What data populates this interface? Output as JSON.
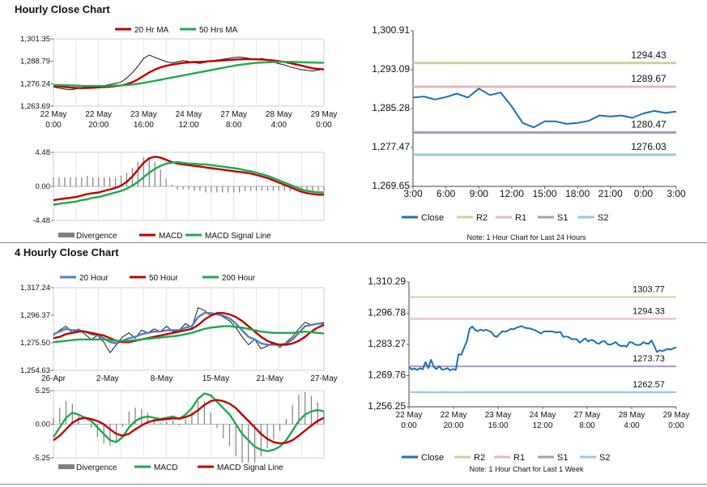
{
  "sections": [
    {
      "title": "Hourly Close Chart",
      "note": "Note: 1 Hour Chart for Last 24 Hours"
    },
    {
      "title": "4 Hourly Close Chart",
      "note": "Note: 1 Hour Chart for Last 1 Week"
    }
  ],
  "colors": {
    "price": "#1a1a1a",
    "ma_short": "#c00000",
    "ma_long": "#21a84f",
    "ma_blue": "#4f81bd",
    "macd_red": "#c00000",
    "macd_green": "#21a84f",
    "divergence": "#808080",
    "close": "#1f6fb5",
    "r2": "#c3d69b",
    "r1": "#e6b9b8",
    "s1": "#a79bc1",
    "s2": "#92cddc"
  },
  "chart_data": [
    {
      "id": "hourly-price",
      "type": "line",
      "legend": [
        "20 Hr MA",
        "50 Hrs MA"
      ],
      "legend_position": "top",
      "x_ticks": [
        "22 May\n0:00",
        "22 May\n20:00",
        "23 May\n16:00",
        "24 May\n12:00",
        "27 May\n8:00",
        "28 May\n4:00",
        "29 May\n0:00"
      ],
      "y_ticks": [
        "1,301.35",
        "1,288.79",
        "1,276.24",
        "1,263.69"
      ],
      "ylim": [
        1263.69,
        1301.35
      ],
      "series": [
        {
          "name": "price",
          "values": [
            1274.5,
            1273.8,
            1273.2,
            1272.9,
            1273.4,
            1274.1,
            1274.6,
            1274.3,
            1275.0,
            1275.2,
            1275.8,
            1276.4,
            1277.2,
            1279.5,
            1282.4,
            1286.1,
            1290.4,
            1292.3,
            1291.0,
            1289.8,
            1288.6,
            1287.9,
            1288.5,
            1289.2,
            1288.7,
            1288.1,
            1287.6,
            1288.3,
            1289.0,
            1289.5,
            1289.9,
            1290.4,
            1290.9,
            1291.2,
            1290.8,
            1290.3,
            1289.9,
            1290.4,
            1289.6,
            1288.4,
            1287.5,
            1286.8,
            1285.6,
            1284.9,
            1284.1,
            1283.7,
            1283.4,
            1283.9,
            1284.4
          ]
        },
        {
          "name": "20 Hr MA",
          "values": [
            1275.0,
            1274.7,
            1274.4,
            1274.1,
            1273.9,
            1273.8,
            1273.9,
            1274.0,
            1274.2,
            1274.4,
            1274.6,
            1274.9,
            1275.3,
            1276.0,
            1277.1,
            1278.7,
            1280.6,
            1282.6,
            1284.2,
            1285.4,
            1286.3,
            1286.9,
            1287.4,
            1287.9,
            1288.2,
            1288.4,
            1288.5,
            1288.7,
            1288.9,
            1289.1,
            1289.3,
            1289.5,
            1289.7,
            1289.9,
            1290.0,
            1290.0,
            1289.9,
            1289.8,
            1289.6,
            1289.3,
            1288.9,
            1288.4,
            1287.8,
            1287.1,
            1286.4,
            1285.6,
            1284.9,
            1284.5,
            1284.3
          ]
        },
        {
          "name": "50 Hrs MA",
          "values": [
            1275.6,
            1275.5,
            1275.4,
            1275.3,
            1275.2,
            1275.1,
            1275.0,
            1275.0,
            1275.0,
            1275.0,
            1275.1,
            1275.2,
            1275.3,
            1275.5,
            1275.8,
            1276.2,
            1276.7,
            1277.3,
            1277.9,
            1278.5,
            1279.1,
            1279.7,
            1280.3,
            1280.9,
            1281.5,
            1282.1,
            1282.7,
            1283.3,
            1283.9,
            1284.5,
            1285.1,
            1285.7,
            1286.3,
            1286.8,
            1287.2,
            1287.6,
            1287.9,
            1288.1,
            1288.3,
            1288.4,
            1288.5,
            1288.5,
            1288.5,
            1288.4,
            1288.3,
            1288.2,
            1288.1,
            1288.0,
            1288.0
          ]
        }
      ]
    },
    {
      "id": "hourly-macd",
      "type": "line",
      "legend": [
        "Divergence",
        "MACD",
        "MACD Signal Line"
      ],
      "legend_position": "bottom",
      "y_ticks": [
        "4.48",
        "0.00",
        "-4.48"
      ],
      "ylim": [
        -4.48,
        4.48
      ],
      "series": [
        {
          "name": "MACD",
          "values": [
            -1.8,
            -1.7,
            -1.6,
            -1.5,
            -1.4,
            -1.2,
            -1.0,
            -0.9,
            -0.8,
            -0.6,
            -0.4,
            -0.2,
            0.1,
            0.6,
            1.3,
            2.2,
            3.1,
            3.7,
            3.9,
            3.8,
            3.5,
            3.2,
            3.0,
            2.9,
            2.8,
            2.7,
            2.6,
            2.5,
            2.4,
            2.3,
            2.2,
            2.1,
            2.0,
            1.9,
            1.8,
            1.7,
            1.5,
            1.3,
            1.1,
            0.8,
            0.5,
            0.2,
            -0.1,
            -0.4,
            -0.7,
            -0.9,
            -1.0,
            -1.1,
            -1.1
          ]
        },
        {
          "name": "MACD Signal Line",
          "values": [
            -2.4,
            -2.3,
            -2.2,
            -2.1,
            -2.0,
            -1.8,
            -1.7,
            -1.5,
            -1.4,
            -1.2,
            -1.0,
            -0.8,
            -0.6,
            -0.3,
            0.1,
            0.6,
            1.2,
            1.8,
            2.3,
            2.7,
            3.0,
            3.1,
            3.2,
            3.1,
            3.0,
            3.0,
            2.9,
            2.9,
            2.8,
            2.7,
            2.6,
            2.5,
            2.4,
            2.3,
            2.1,
            2.0,
            1.8,
            1.6,
            1.4,
            1.1,
            0.8,
            0.5,
            0.2,
            -0.1,
            -0.4,
            -0.6,
            -0.7,
            -0.8,
            -0.8
          ]
        }
      ]
    },
    {
      "id": "hourly-levels",
      "type": "line",
      "legend": [
        "Close",
        "R2",
        "R1",
        "S1",
        "S2"
      ],
      "legend_position": "bottom",
      "x_ticks": [
        "3:00",
        "6:00",
        "9:00",
        "12:00",
        "15:00",
        "18:00",
        "21:00",
        "0:00",
        "3:00"
      ],
      "y_ticks": [
        "1,300.91",
        "1,293.09",
        "1,285.28",
        "1,277.47",
        "1,269.65"
      ],
      "ylim": [
        1269.65,
        1300.91
      ],
      "levels": [
        {
          "name": "R2",
          "value": 1294.43,
          "label": "1294.43"
        },
        {
          "name": "R1",
          "value": 1289.67,
          "label": "1289.67"
        },
        {
          "name": "S1",
          "value": 1280.47,
          "label": "1280.47"
        },
        {
          "name": "S2",
          "value": 1276.03,
          "label": "1276.03"
        }
      ],
      "series": [
        {
          "name": "Close",
          "values": [
            1287.5,
            1287.7,
            1287.1,
            1287.6,
            1288.3,
            1287.5,
            1289.3,
            1288.0,
            1288.5,
            1285.7,
            1282.4,
            1281.5,
            1282.7,
            1282.7,
            1282.2,
            1282.4,
            1282.8,
            1283.9,
            1283.7,
            1283.9,
            1283.4,
            1284.3,
            1284.8,
            1284.4,
            1284.7
          ]
        }
      ]
    },
    {
      "id": "4h-price",
      "type": "line",
      "legend": [
        "20 Hour",
        "50 Hour",
        "200 Hour"
      ],
      "legend_position": "top",
      "x_ticks": [
        "26-Apr",
        "2-May",
        "8-May",
        "15-May",
        "21-May",
        "27-May"
      ],
      "y_ticks": [
        "1,317.24",
        "1,296.37",
        "1,275.50",
        "1,254.63"
      ],
      "ylim": [
        1254.63,
        1317.24
      ],
      "series": [
        {
          "name": "price",
          "values": [
            1281.0,
            1285.0,
            1288.0,
            1283.0,
            1286.0,
            1282.0,
            1278.0,
            1281.0,
            1276.0,
            1268.0,
            1274.0,
            1280.0,
            1283.0,
            1279.0,
            1285.0,
            1283.0,
            1286.0,
            1284.0,
            1288.0,
            1284.0,
            1285.0,
            1290.0,
            1287.0,
            1302.0,
            1300.0,
            1296.0,
            1298.0,
            1295.0,
            1292.0,
            1287.0,
            1280.0,
            1274.0,
            1278.0,
            1271.0,
            1273.0,
            1276.0,
            1272.0,
            1276.0,
            1280.0,
            1286.0,
            1291.0,
            1289.0,
            1290.0,
            1291.0
          ]
        },
        {
          "name": "20 Hour",
          "values": [
            1282.0,
            1284.0,
            1286.0,
            1285.0,
            1285.0,
            1284.0,
            1282.0,
            1281.0,
            1279.0,
            1276.0,
            1275.0,
            1277.0,
            1279.0,
            1280.0,
            1282.0,
            1283.0,
            1284.0,
            1284.0,
            1285.0,
            1285.0,
            1285.0,
            1287.0,
            1288.0,
            1295.0,
            1298.0,
            1298.0,
            1297.0,
            1296.0,
            1294.0,
            1290.0,
            1285.0,
            1280.0,
            1278.0,
            1275.0,
            1274.0,
            1274.0,
            1274.0,
            1275.0,
            1278.0,
            1283.0,
            1288.0,
            1289.0,
            1290.0,
            1290.0
          ]
        },
        {
          "name": "50 Hour",
          "values": [
            1279.0,
            1280.0,
            1282.0,
            1283.0,
            1284.0,
            1284.0,
            1283.0,
            1282.0,
            1281.0,
            1279.0,
            1277.0,
            1276.0,
            1276.0,
            1277.0,
            1278.0,
            1279.0,
            1280.0,
            1281.0,
            1282.0,
            1283.0,
            1284.0,
            1285.0,
            1286.0,
            1289.0,
            1293.0,
            1296.0,
            1298.0,
            1298.0,
            1297.0,
            1295.0,
            1292.0,
            1288.0,
            1284.0,
            1280.0,
            1277.0,
            1275.0,
            1274.0,
            1274.0,
            1275.0,
            1277.0,
            1280.0,
            1284.0,
            1287.0,
            1289.0
          ]
        },
        {
          "name": "200 Hour",
          "values": [
            1276.0,
            1276.5,
            1277.0,
            1277.5,
            1278.0,
            1278.0,
            1278.0,
            1278.0,
            1278.0,
            1277.5,
            1277.0,
            1277.0,
            1277.0,
            1277.5,
            1278.0,
            1278.5,
            1279.0,
            1279.5,
            1280.0,
            1280.5,
            1281.0,
            1282.0,
            1283.0,
            1284.5,
            1286.0,
            1287.0,
            1287.5,
            1288.0,
            1288.0,
            1287.5,
            1287.0,
            1286.0,
            1285.0,
            1284.0,
            1283.5,
            1283.0,
            1283.0,
            1283.0,
            1283.0,
            1283.5,
            1284.0,
            1283.5,
            1283.0,
            1282.5
          ]
        }
      ]
    },
    {
      "id": "4h-macd",
      "type": "line",
      "legend": [
        "Divergence",
        "MACD",
        "MACD Signal Line"
      ],
      "legend_position": "bottom",
      "y_ticks": [
        "5.25",
        "0.00",
        "-5.25"
      ],
      "ylim": [
        -5.25,
        5.25
      ],
      "series": [
        {
          "name": "MACD",
          "values": [
            -2.0,
            -0.5,
            1.0,
            1.8,
            1.5,
            1.0,
            0.5,
            -0.5,
            -1.5,
            -2.5,
            -2.8,
            -2.0,
            -0.5,
            0.5,
            1.0,
            1.2,
            1.0,
            0.8,
            1.0,
            1.2,
            0.8,
            1.5,
            2.5,
            4.0,
            4.8,
            4.5,
            3.5,
            2.5,
            1.5,
            0.0,
            -1.5,
            -2.5,
            -3.5,
            -4.0,
            -4.2,
            -4.0,
            -3.5,
            -2.5,
            -1.0,
            0.5,
            1.5,
            2.0,
            2.2,
            2.0
          ]
        },
        {
          "name": "MACD Signal Line",
          "values": [
            -2.5,
            -1.8,
            -0.8,
            0.2,
            0.8,
            1.0,
            0.8,
            0.5,
            0.0,
            -0.8,
            -1.5,
            -1.8,
            -1.5,
            -0.8,
            -0.2,
            0.3,
            0.6,
            0.7,
            0.8,
            0.9,
            0.9,
            1.1,
            1.5,
            2.2,
            3.0,
            3.6,
            3.8,
            3.6,
            3.2,
            2.5,
            1.5,
            0.5,
            -0.5,
            -1.5,
            -2.3,
            -2.8,
            -3.0,
            -2.9,
            -2.5,
            -1.8,
            -1.0,
            -0.2,
            0.5,
            1.0
          ]
        }
      ]
    },
    {
      "id": "4h-levels",
      "type": "line",
      "legend": [
        "Close",
        "R2",
        "R1",
        "S1",
        "S2"
      ],
      "legend_position": "bottom",
      "x_ticks": [
        "22 May\n0:00",
        "22 May\n20:00",
        "23 May\n16:00",
        "24 May\n12:00",
        "27 May\n8:00",
        "28 May\n4:00",
        "29 May\n0:00"
      ],
      "y_ticks": [
        "1,310.29",
        "1,296.78",
        "1,283.27",
        "1,269.76",
        "1,256.25"
      ],
      "ylim": [
        1256.25,
        1310.29
      ],
      "levels": [
        {
          "name": "R2",
          "value": 1303.77,
          "label": "1303.77"
        },
        {
          "name": "R1",
          "value": 1294.33,
          "label": "1294.33"
        },
        {
          "name": "S1",
          "value": 1273.73,
          "label": "1273.73"
        },
        {
          "name": "S2",
          "value": 1262.57,
          "label": "1262.57"
        }
      ],
      "series": [
        {
          "name": "Close",
          "values": [
            1273.5,
            1272.4,
            1272.8,
            1272.2,
            1273.0,
            1272.5,
            1275.6,
            1273.0,
            1276.6,
            1273.5,
            1272.6,
            1273.8,
            1272.3,
            1272.5,
            1273.0,
            1272.0,
            1272.6,
            1272.2,
            1279.0,
            1278.8,
            1281.8,
            1284.5,
            1290.0,
            1291.0,
            1289.5,
            1289.0,
            1289.7,
            1289.2,
            1289.6,
            1289.1,
            1288.5,
            1286.8,
            1286.6,
            1288.0,
            1289.0,
            1288.7,
            1289.3,
            1290.0,
            1289.8,
            1290.5,
            1290.9,
            1291.2,
            1290.5,
            1290.3,
            1290.1,
            1289.7,
            1289.3,
            1288.5,
            1288.0,
            1288.9,
            1288.9,
            1288.9,
            1288.9,
            1288.5,
            1288.5,
            1288.6,
            1286.5,
            1286.7,
            1286.4,
            1285.5,
            1285.6,
            1285.4,
            1284.0,
            1285.0,
            1285.9,
            1284.5,
            1285.2,
            1285.0,
            1283.9,
            1283.5,
            1284.5,
            1284.7,
            1283.4,
            1283.1,
            1283.6,
            1284.3,
            1283.1,
            1282.5,
            1282.7,
            1282.3,
            1284.2,
            1284.1,
            1283.2,
            1283.0,
            1283.1,
            1284.2,
            1283.7,
            1283.5,
            1285.0,
            1282.6,
            1280.0,
            1280.7,
            1280.4,
            1280.9,
            1281.3,
            1281.0,
            1281.6,
            1282.0
          ]
        }
      ]
    }
  ]
}
